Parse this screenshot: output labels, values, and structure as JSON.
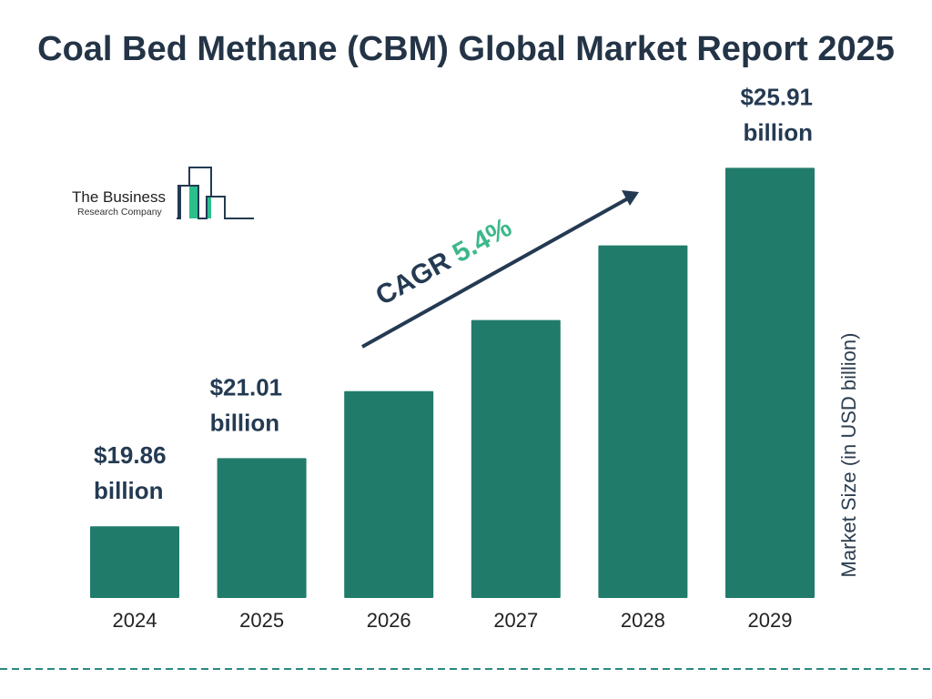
{
  "chart_data": {
    "type": "bar",
    "title": "Coal Bed Methane (CBM) Global Market Report 2025",
    "ylabel": "Market Size (in USD billion)",
    "xlabel": "",
    "categories": [
      "2024",
      "2025",
      "2026",
      "2027",
      "2028",
      "2029"
    ],
    "values": [
      19.86,
      21.01,
      22.14,
      23.34,
      24.6,
      25.91
    ],
    "data_labels": [
      {
        "index": 0,
        "line1": "$19.86",
        "line2": "billion"
      },
      {
        "index": 1,
        "line1": "$21.01",
        "line2": "billion"
      },
      {
        "index": 5,
        "line1": "$25.91",
        "line2": "billion"
      }
    ],
    "ylim": [
      18.65,
      26.2
    ],
    "grid": false,
    "annotation": {
      "label": "CAGR",
      "value": "5.4%"
    },
    "colors": {
      "bar": "#217b6b",
      "text": "#243a52",
      "cagr": "#3cb88a",
      "divider": "#2a8a80"
    }
  },
  "logo": {
    "line1": "The Business",
    "line2": "Research Company"
  }
}
